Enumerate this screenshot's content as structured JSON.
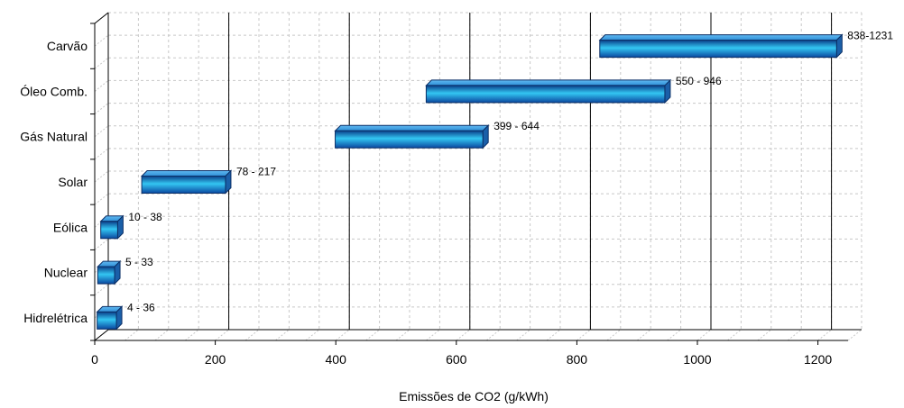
{
  "chart_data": {
    "type": "bar",
    "orientation": "horizontal",
    "style": "floating-range-3d",
    "categories": [
      "Hidrelétrica",
      "Nuclear",
      "Eólica",
      "Solar",
      "Gás Natural",
      "Óleo Comb.",
      "Carvão"
    ],
    "ranges": [
      {
        "category": "Hidrelétrica",
        "low": 4,
        "high": 36,
        "label": "4 - 36"
      },
      {
        "category": "Nuclear",
        "low": 5,
        "high": 33,
        "label": "5 - 33"
      },
      {
        "category": "Eólica",
        "low": 10,
        "high": 38,
        "label": "10 - 38"
      },
      {
        "category": "Solar",
        "low": 78,
        "high": 217,
        "label": "78 - 217"
      },
      {
        "category": "Gás Natural",
        "low": 399,
        "high": 644,
        "label": "399 - 644"
      },
      {
        "category": "Óleo Comb.",
        "low": 550,
        "high": 946,
        "label": "550 - 946"
      },
      {
        "category": "Carvão",
        "low": 838,
        "high": 1231,
        "label": "838-1231"
      }
    ],
    "xlabel": "Emissões de CO2 (g/kWh)",
    "ylabel": "",
    "title": "",
    "xlim": [
      0,
      1250
    ],
    "xticks": [
      0,
      200,
      400,
      600,
      800,
      1000,
      1200
    ],
    "grid": true,
    "bar_color": "#1e90ff",
    "bar_dark": "#1a5fa8"
  }
}
